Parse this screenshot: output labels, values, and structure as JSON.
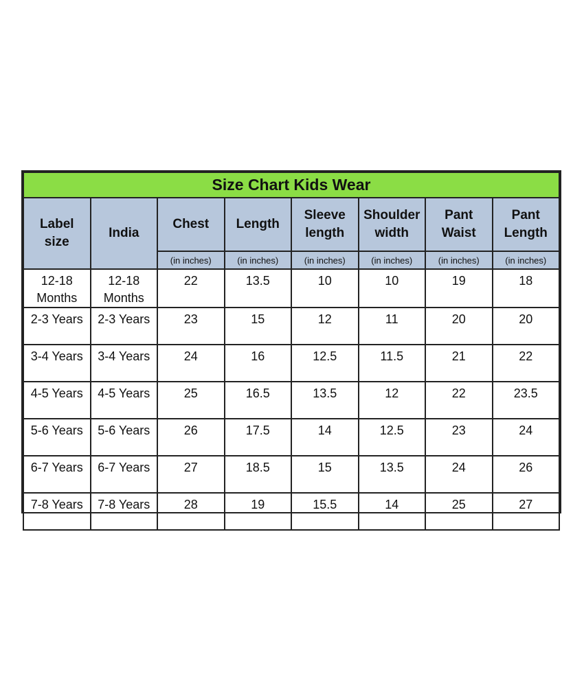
{
  "title": "Size Chart Kids Wear",
  "colors": {
    "title_bar": "#8BDD45",
    "header_bg": "#B7C7DC",
    "border": "#222222",
    "text": "#111111"
  },
  "columns": [
    {
      "key": "label_size",
      "label": "Label\nsize",
      "unit": ""
    },
    {
      "key": "india",
      "label": "India",
      "unit": ""
    },
    {
      "key": "chest",
      "label": "Chest",
      "unit": "(in inches)"
    },
    {
      "key": "length",
      "label": "Length",
      "unit": "(in inches)"
    },
    {
      "key": "sleeve_length",
      "label": "Sleeve\nlength",
      "unit": "(in inches)"
    },
    {
      "key": "shoulder_width",
      "label": "Shoulder\nwidth",
      "unit": "(in inches)"
    },
    {
      "key": "pant_waist",
      "label": "Pant\nWaist",
      "unit": "(in inches)"
    },
    {
      "key": "pant_length",
      "label": "Pant\nLength",
      "unit": "(in inches)"
    }
  ],
  "rows": [
    [
      "12-18\nMonths",
      "12-18\nMonths",
      "22",
      "13.5",
      "10",
      "10",
      "19",
      "18"
    ],
    [
      "2-3 Years",
      "2-3 Years",
      "23",
      "15",
      "12",
      "11",
      "20",
      "20"
    ],
    [
      "3-4 Years",
      "3-4 Years",
      "24",
      "16",
      "12.5",
      "11.5",
      "21",
      "22"
    ],
    [
      "4-5 Years",
      "4-5 Years",
      "25",
      "16.5",
      "13.5",
      "12",
      "22",
      "23.5"
    ],
    [
      "5-6 Years",
      "5-6 Years",
      "26",
      "17.5",
      "14",
      "12.5",
      "23",
      "24"
    ],
    [
      "6-7 Years",
      "6-7 Years",
      "27",
      "18.5",
      "15",
      "13.5",
      "24",
      "26"
    ],
    [
      "7-8 Years",
      "7-8 Years",
      "28",
      "19",
      "15.5",
      "14",
      "25",
      "27"
    ]
  ]
}
